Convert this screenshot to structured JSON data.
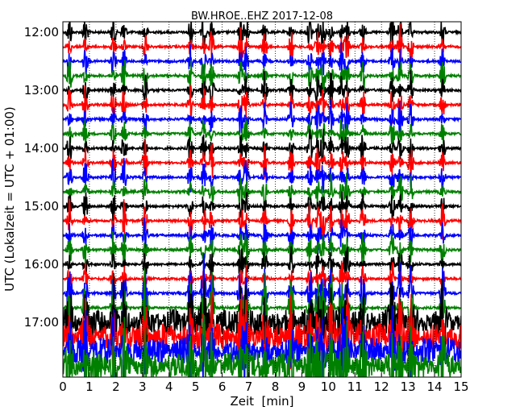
{
  "chart_data": {
    "type": "line",
    "title": "BW.HROE..EHZ 2017-12-08",
    "xlabel": "Zeit  [min]",
    "ylabel": "UTC (Lokalzeit = UTC + 01:00)",
    "xlim": [
      0,
      15
    ],
    "x_ticks": [
      "0",
      "1",
      "2",
      "3",
      "4",
      "5",
      "6",
      "7",
      "8",
      "9",
      "10",
      "11",
      "12",
      "13",
      "14",
      "15"
    ],
    "y_ticks": [
      "12:00",
      "13:00",
      "14:00",
      "15:00",
      "16:00",
      "17:00"
    ],
    "trace_colors": [
      "#000000",
      "#ff0000",
      "#0000ff",
      "#008000"
    ],
    "traces_per_hour": 4,
    "trace_start_times": [
      "12:00",
      "12:15",
      "12:30",
      "12:45",
      "13:00",
      "13:15",
      "13:30",
      "13:45",
      "14:00",
      "14:15",
      "14:30",
      "14:45",
      "15:00",
      "15:15",
      "15:30",
      "15:45",
      "16:00",
      "16:15",
      "16:30",
      "16:45",
      "17:00",
      "17:15",
      "17:30",
      "17:45"
    ],
    "event_minutes": [
      0.25,
      0.85,
      1.9,
      2.3,
      3.1,
      4.8,
      5.3,
      5.6,
      6.7,
      6.9,
      7.6,
      8.6,
      9.3,
      9.6,
      9.8,
      10.1,
      10.5,
      10.7,
      11.3,
      12.4,
      12.7,
      13.1,
      14.3
    ],
    "grid": true
  }
}
